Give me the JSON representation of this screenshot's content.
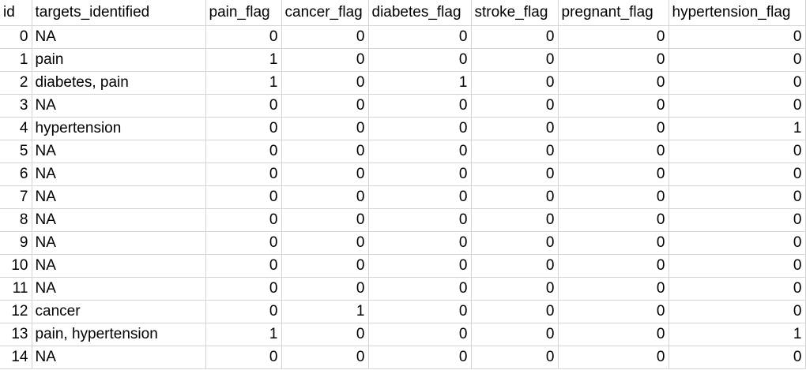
{
  "headers": [
    "id",
    "targets_identified",
    "pain_flag",
    "cancer_flag",
    "diabetes_flag",
    "stroke_flag",
    "pregnant_flag",
    "hypertension_flag"
  ],
  "rows": [
    [
      "0",
      "NA",
      "0",
      "0",
      "0",
      "0",
      "0",
      "0"
    ],
    [
      "1",
      "pain",
      "1",
      "0",
      "0",
      "0",
      "0",
      "0"
    ],
    [
      "2",
      "diabetes, pain",
      "1",
      "0",
      "1",
      "0",
      "0",
      "0"
    ],
    [
      "3",
      "NA",
      "0",
      "0",
      "0",
      "0",
      "0",
      "0"
    ],
    [
      "4",
      "hypertension",
      "0",
      "0",
      "0",
      "0",
      "0",
      "1"
    ],
    [
      "5",
      "NA",
      "0",
      "0",
      "0",
      "0",
      "0",
      "0"
    ],
    [
      "6",
      "NA",
      "0",
      "0",
      "0",
      "0",
      "0",
      "0"
    ],
    [
      "7",
      "NA",
      "0",
      "0",
      "0",
      "0",
      "0",
      "0"
    ],
    [
      "8",
      "NA",
      "0",
      "0",
      "0",
      "0",
      "0",
      "0"
    ],
    [
      "9",
      "NA",
      "0",
      "0",
      "0",
      "0",
      "0",
      "0"
    ],
    [
      "10",
      "NA",
      "0",
      "0",
      "0",
      "0",
      "0",
      "0"
    ],
    [
      "11",
      "NA",
      "0",
      "0",
      "0",
      "0",
      "0",
      "0"
    ],
    [
      "12",
      "cancer",
      "0",
      "1",
      "0",
      "0",
      "0",
      "0"
    ],
    [
      "13",
      "pain, hypertension",
      "1",
      "0",
      "0",
      "0",
      "0",
      "1"
    ],
    [
      "14",
      "NA",
      "0",
      "0",
      "0",
      "0",
      "0",
      "0"
    ]
  ]
}
